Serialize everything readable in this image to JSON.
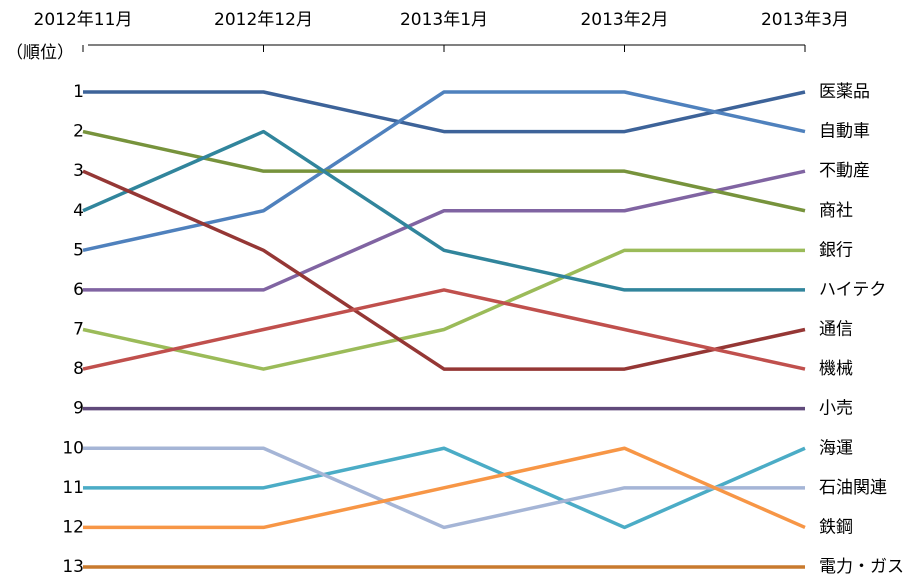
{
  "chart_data": {
    "type": "line",
    "ylabel": "（順位）",
    "categories": [
      "2012年11月",
      "2012年12月",
      "2013年1月",
      "2013年2月",
      "2013年3月"
    ],
    "ylim": [
      13,
      1
    ],
    "yticks": [
      1,
      2,
      3,
      4,
      5,
      6,
      7,
      8,
      9,
      10,
      11,
      12,
      13
    ],
    "grid": false,
    "series": [
      {
        "name": "医薬品",
        "color": "#3d6399",
        "values": [
          1,
          1,
          2,
          2,
          1
        ]
      },
      {
        "name": "自動車",
        "color": "#4f81bd",
        "values": [
          5,
          4,
          1,
          1,
          2
        ]
      },
      {
        "name": "不動産",
        "color": "#8064a2",
        "values": [
          6,
          6,
          4,
          4,
          3
        ]
      },
      {
        "name": "商社",
        "color": "#77933c",
        "values": [
          2,
          3,
          3,
          3,
          4
        ]
      },
      {
        "name": "銀行",
        "color": "#9bbb59",
        "values": [
          7,
          8,
          7,
          5,
          5
        ]
      },
      {
        "name": "ハイテク",
        "color": "#31859c",
        "values": [
          4,
          2,
          5,
          6,
          6
        ]
      },
      {
        "name": "通信",
        "color": "#953735",
        "values": [
          3,
          5,
          8,
          8,
          7
        ]
      },
      {
        "name": "機械",
        "color": "#c0504d",
        "values": [
          8,
          7,
          6,
          7,
          8
        ]
      },
      {
        "name": "小売",
        "color": "#604a7b",
        "values": [
          9,
          9,
          9,
          9,
          9
        ]
      },
      {
        "name": "海運",
        "color": "#4bacc6",
        "values": [
          11,
          11,
          10,
          12,
          10
        ]
      },
      {
        "name": "石油関連",
        "color": "#a5b5d6",
        "values": [
          10,
          10,
          12,
          11,
          11
        ]
      },
      {
        "name": "鉄鋼",
        "color": "#f79646",
        "values": [
          12,
          12,
          11,
          10,
          12
        ]
      },
      {
        "name": "電力・ガス",
        "color": "#c87a2e",
        "values": [
          13,
          13,
          13,
          13,
          13
        ]
      }
    ]
  }
}
